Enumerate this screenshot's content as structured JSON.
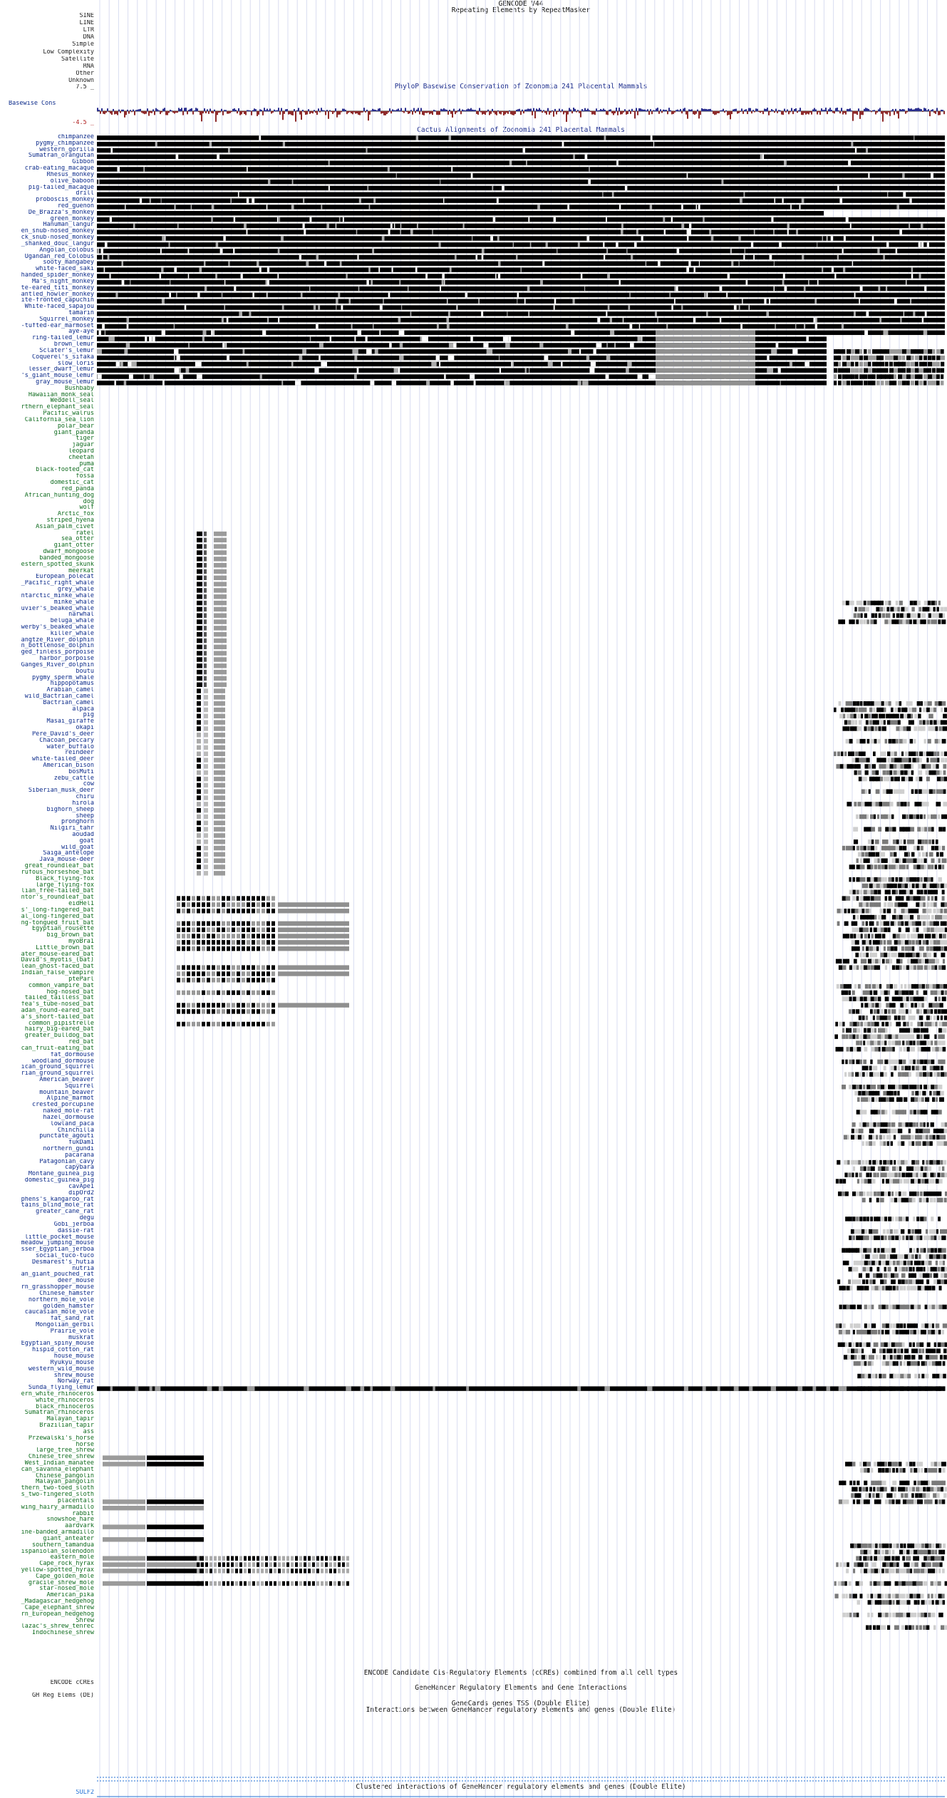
{
  "header": {
    "gencode_title": "GENCODE V44",
    "rmsk_title": "Repeating Elements by RepeatMasker",
    "phylop_title": "PhyloP Basewise Conservation of Zoonomia 241 Placental Mammals",
    "cactus_title": "Cactus Alignments of Zoonomia 241 Placental Mammals"
  },
  "repeat_classes": [
    "SINE",
    "LINE",
    "LTR",
    "DNA",
    "Simple",
    "Low Complexity",
    "Satellite",
    "RNA",
    "Other",
    "Unknown"
  ],
  "phylop": {
    "label": "Basewise Cons",
    "ymax_label": "7.5 _",
    "ymin_label": "-4.5 _"
  },
  "species": [
    {
      "n": "chimpanzee",
      "c": "b"
    },
    {
      "n": "pygmy_chimpanzee",
      "c": "b"
    },
    {
      "n": "western_gorilla",
      "c": "b"
    },
    {
      "n": "Sumatran_orangutan",
      "c": "b"
    },
    {
      "n": "Gibbon",
      "c": "b"
    },
    {
      "n": "crab-eating_macaque",
      "c": "b"
    },
    {
      "n": "Rhesus_monkey",
      "c": "b"
    },
    {
      "n": "olive_baboon",
      "c": "b"
    },
    {
      "n": "pig-tailed_macaque",
      "c": "b"
    },
    {
      "n": "drill",
      "c": "b"
    },
    {
      "n": "proboscis_monkey",
      "c": "b"
    },
    {
      "n": "red_guenon",
      "c": "b"
    },
    {
      "n": "De_Brazza's_monkey",
      "c": "b"
    },
    {
      "n": "green_monkey",
      "c": "b"
    },
    {
      "n": "Hanuman_langur",
      "c": "b"
    },
    {
      "n": "en_snub-nosed_monkey",
      "c": "b"
    },
    {
      "n": "ck_snub-nosed_monkey",
      "c": "b"
    },
    {
      "n": "_shanked_douc_langur",
      "c": "b"
    },
    {
      "n": "Angolan_colobus",
      "c": "b"
    },
    {
      "n": "Ugandan_red_Colobus",
      "c": "b"
    },
    {
      "n": "sooty_mangabey",
      "c": "b"
    },
    {
      "n": "white-faced_saki",
      "c": "b"
    },
    {
      "n": "handed_spider_monkey",
      "c": "b"
    },
    {
      "n": "Ma's_night_monkey",
      "c": "b"
    },
    {
      "n": "te-eared_titi_monkey",
      "c": "b"
    },
    {
      "n": "antled_howler_monkey",
      "c": "b"
    },
    {
      "n": "ite-fronted_capuchin",
      "c": "b"
    },
    {
      "n": "White-faced_sapajou",
      "c": "b"
    },
    {
      "n": "tamarin",
      "c": "b"
    },
    {
      "n": "Squirrel_monkey",
      "c": "b"
    },
    {
      "n": "-tufted-ear_marmoset",
      "c": "b"
    },
    {
      "n": "aye-aye",
      "c": "b"
    },
    {
      "n": "ring-tailed_lemur",
      "c": "b"
    },
    {
      "n": "brown_lemur",
      "c": "b"
    },
    {
      "n": "Sclater's_lemur",
      "c": "b"
    },
    {
      "n": "Coquerel's_sifaka",
      "c": "b"
    },
    {
      "n": "slow_loris",
      "c": "b"
    },
    {
      "n": "lesser_dwarf_lemur",
      "c": "b"
    },
    {
      "n": "'s_giant_mouse_lemur",
      "c": "b"
    },
    {
      "n": "gray_mouse_lemur",
      "c": "b"
    },
    {
      "n": "Bushbaby",
      "c": "g"
    },
    {
      "n": "Hawaiian_monk_seal",
      "c": "g"
    },
    {
      "n": "Weddell_seal",
      "c": "g"
    },
    {
      "n": "rthern_elephant_seal",
      "c": "g"
    },
    {
      "n": "Pacific_walrus",
      "c": "g"
    },
    {
      "n": "California_sea_lion",
      "c": "g"
    },
    {
      "n": "polar_bear",
      "c": "g"
    },
    {
      "n": "giant_panda",
      "c": "g"
    },
    {
      "n": "tiger",
      "c": "g"
    },
    {
      "n": "jaguar",
      "c": "g"
    },
    {
      "n": "leopard",
      "c": "g"
    },
    {
      "n": "cheetah",
      "c": "g"
    },
    {
      "n": "puma",
      "c": "g"
    },
    {
      "n": "black-footed_cat",
      "c": "g"
    },
    {
      "n": "fossa",
      "c": "g"
    },
    {
      "n": "domestic_cat",
      "c": "g"
    },
    {
      "n": "red_panda",
      "c": "g"
    },
    {
      "n": "African_hunting_dog",
      "c": "g"
    },
    {
      "n": "dog",
      "c": "g"
    },
    {
      "n": "wolf",
      "c": "g"
    },
    {
      "n": "Arctic_fox",
      "c": "g"
    },
    {
      "n": "striped_hyena",
      "c": "g"
    },
    {
      "n": "Asian_palm_civet",
      "c": "g"
    },
    {
      "n": "ratel",
      "c": "g"
    },
    {
      "n": "sea_otter",
      "c": "g"
    },
    {
      "n": "giant_otter",
      "c": "g"
    },
    {
      "n": "dwarf_mongoose",
      "c": "g"
    },
    {
      "n": "banded_mongoose",
      "c": "g"
    },
    {
      "n": "estern_spotted_skunk",
      "c": "g"
    },
    {
      "n": "meerkat",
      "c": "g"
    },
    {
      "n": "European_polecat",
      "c": "b"
    },
    {
      "n": "_Pacific_right_whale",
      "c": "b"
    },
    {
      "n": "grey_whale",
      "c": "b"
    },
    {
      "n": "ntarctic_minke_whale",
      "c": "b"
    },
    {
      "n": "minke_whale",
      "c": "b"
    },
    {
      "n": "uvier's_beaked_whale",
      "c": "b"
    },
    {
      "n": "narwhal",
      "c": "b"
    },
    {
      "n": "beluga_whale",
      "c": "b"
    },
    {
      "n": "werby's_beaked_whale",
      "c": "b"
    },
    {
      "n": "killer_whale",
      "c": "b"
    },
    {
      "n": "angtze_River_dolphin",
      "c": "b"
    },
    {
      "n": "n_bottlenose_dolphin",
      "c": "b"
    },
    {
      "n": "ged_finless_porpoise",
      "c": "b"
    },
    {
      "n": "harbor_porpoise",
      "c": "b"
    },
    {
      "n": "Ganges_River_dolphin",
      "c": "b"
    },
    {
      "n": "boutu",
      "c": "b"
    },
    {
      "n": "pygmy_sperm_whale",
      "c": "b"
    },
    {
      "n": "hippopotamus",
      "c": "b"
    },
    {
      "n": "Arabian_camel",
      "c": "b"
    },
    {
      "n": "wild_Bactrian_camel",
      "c": "b"
    },
    {
      "n": "Bactrian_camel",
      "c": "b"
    },
    {
      "n": "alpaca",
      "c": "b"
    },
    {
      "n": "pig",
      "c": "b"
    },
    {
      "n": "Masai_giraffe",
      "c": "b"
    },
    {
      "n": "okapi",
      "c": "b"
    },
    {
      "n": "Pere_David's_deer",
      "c": "b"
    },
    {
      "n": "Chacoan_peccary",
      "c": "b"
    },
    {
      "n": "water_buffalo",
      "c": "b"
    },
    {
      "n": "reindeer",
      "c": "b"
    },
    {
      "n": "white-tailed_deer",
      "c": "b"
    },
    {
      "n": "American_bison",
      "c": "b"
    },
    {
      "n": "bosMuti",
      "c": "b"
    },
    {
      "n": "zebu_cattle",
      "c": "b"
    },
    {
      "n": "cow",
      "c": "b"
    },
    {
      "n": "Siberian_musk_deer",
      "c": "b"
    },
    {
      "n": "chiru",
      "c": "b"
    },
    {
      "n": "hirola",
      "c": "b"
    },
    {
      "n": "bighorn_sheep",
      "c": "b"
    },
    {
      "n": "sheep",
      "c": "b"
    },
    {
      "n": "pronghorn",
      "c": "b"
    },
    {
      "n": "Nilgiri_tahr",
      "c": "b"
    },
    {
      "n": "aoudad",
      "c": "b"
    },
    {
      "n": "goat",
      "c": "b"
    },
    {
      "n": "wild_goat",
      "c": "b"
    },
    {
      "n": "Saiga_antelope",
      "c": "b"
    },
    {
      "n": "Java_mouse-deer",
      "c": "b"
    },
    {
      "n": "great_roundleaf_bat",
      "c": "g"
    },
    {
      "n": "rufous_horseshoe_bat",
      "c": "g"
    },
    {
      "n": "Black_flying-fox",
      "c": "g"
    },
    {
      "n": "large_flying-fox",
      "c": "g"
    },
    {
      "n": "lian_free-tailed_bat",
      "c": "g"
    },
    {
      "n": "ntor's_roundleaf_bat",
      "c": "g"
    },
    {
      "n": "eidHel1",
      "c": "g"
    },
    {
      "n": "s'_long-fingered_bat",
      "c": "g"
    },
    {
      "n": "al_long-fingered_bat",
      "c": "g"
    },
    {
      "n": "ng-tongued_fruit_bat",
      "c": "g"
    },
    {
      "n": "Egyptian_rousette",
      "c": "g"
    },
    {
      "n": "big_brown_bat",
      "c": "g"
    },
    {
      "n": "myoBra1",
      "c": "g"
    },
    {
      "n": "Little_brown_bat",
      "c": "g"
    },
    {
      "n": "ater_mouse-eared_bat",
      "c": "g"
    },
    {
      "n": "David's_myotis_(bat)",
      "c": "g"
    },
    {
      "n": "lean_ghost-faced_bat",
      "c": "g"
    },
    {
      "n": "Indian_false_vampire",
      "c": "g"
    },
    {
      "n": "pteParl",
      "c": "g"
    },
    {
      "n": "common_vampire_bat",
      "c": "g"
    },
    {
      "n": "hog-nosed_bat",
      "c": "g"
    },
    {
      "n": "tailed_tailless_bat",
      "c": "g"
    },
    {
      "n": "fea's_tube-nosed_bat",
      "c": "g"
    },
    {
      "n": "adan_round-eared_bat",
      "c": "g"
    },
    {
      "n": "a's_short-tailed_bat",
      "c": "g"
    },
    {
      "n": "common_pipistrelle",
      "c": "g"
    },
    {
      "n": "hairy_big-eared_bat",
      "c": "g"
    },
    {
      "n": "greater_bulldog_bat",
      "c": "g"
    },
    {
      "n": "red_bat",
      "c": "g"
    },
    {
      "n": "can_fruit-eating_bat",
      "c": "g"
    },
    {
      "n": "fat_dormouse",
      "c": "b"
    },
    {
      "n": "woodland_dormouse",
      "c": "b"
    },
    {
      "n": "ican_ground_squirrel",
      "c": "b"
    },
    {
      "n": "rian_ground_squirrel",
      "c": "b"
    },
    {
      "n": "American_beaver",
      "c": "b"
    },
    {
      "n": "Squirrel",
      "c": "b"
    },
    {
      "n": "mountain_beaver",
      "c": "b"
    },
    {
      "n": "Alpine_marmot",
      "c": "b"
    },
    {
      "n": "crested_porcupine",
      "c": "b"
    },
    {
      "n": "naked_mole-rat",
      "c": "b"
    },
    {
      "n": "hazel_dormouse",
      "c": "b"
    },
    {
      "n": "lowland_paca",
      "c": "b"
    },
    {
      "n": "Chinchilla",
      "c": "b"
    },
    {
      "n": "punctate_agouti",
      "c": "b"
    },
    {
      "n": "fukDam1",
      "c": "b"
    },
    {
      "n": "northern_gundi",
      "c": "b"
    },
    {
      "n": "pacarana",
      "c": "b"
    },
    {
      "n": "Patagonian_cavy",
      "c": "b"
    },
    {
      "n": "capybara",
      "c": "b"
    },
    {
      "n": "Montane_guinea_pig",
      "c": "b"
    },
    {
      "n": "domestic_guinea_pig",
      "c": "b"
    },
    {
      "n": "cavApe1",
      "c": "b"
    },
    {
      "n": "dipOrd2",
      "c": "b"
    },
    {
      "n": "phens's_kangaroo_rat",
      "c": "b"
    },
    {
      "n": "tains_blind_mole_rat",
      "c": "b"
    },
    {
      "n": "greater_cane_rat",
      "c": "b"
    },
    {
      "n": "degu",
      "c": "b"
    },
    {
      "n": "Gobi_jerboa",
      "c": "b"
    },
    {
      "n": "dassie-rat",
      "c": "b"
    },
    {
      "n": "little_pocket_mouse",
      "c": "b"
    },
    {
      "n": "meadow_jumping_mouse",
      "c": "b"
    },
    {
      "n": "sser_Egyptian_jerboa",
      "c": "b"
    },
    {
      "n": "social_tuco-tuco",
      "c": "b"
    },
    {
      "n": "Desmarest's_hutia",
      "c": "b"
    },
    {
      "n": "nutria",
      "c": "b"
    },
    {
      "n": "an_giant_pouched_rat",
      "c": "b"
    },
    {
      "n": "deer_mouse",
      "c": "b"
    },
    {
      "n": "rn_grasshopper_mouse",
      "c": "b"
    },
    {
      "n": "Chinese_hamster",
      "c": "b"
    },
    {
      "n": "northern_mole_vole",
      "c": "b"
    },
    {
      "n": "golden_hamster",
      "c": "b"
    },
    {
      "n": "caucasian_mole_vole",
      "c": "b"
    },
    {
      "n": "fat_sand_rat",
      "c": "b"
    },
    {
      "n": "Mongolian_gerbil",
      "c": "b"
    },
    {
      "n": "Prairie_vole",
      "c": "b"
    },
    {
      "n": "muskrat",
      "c": "b"
    },
    {
      "n": "Egyptian_spiny_mouse",
      "c": "b"
    },
    {
      "n": "hispid_cotton_rat",
      "c": "b"
    },
    {
      "n": "house_mouse",
      "c": "b"
    },
    {
      "n": "Ryukyu_mouse",
      "c": "b"
    },
    {
      "n": "western_wild_mouse",
      "c": "b"
    },
    {
      "n": "shrew_mouse",
      "c": "b"
    },
    {
      "n": "Norway_rat",
      "c": "b"
    },
    {
      "n": "Sunda_flying_lemur",
      "c": "b"
    },
    {
      "n": "ern_white_rhinoceros",
      "c": "g"
    },
    {
      "n": "white_rhinoceros",
      "c": "g"
    },
    {
      "n": "black_rhinoceros",
      "c": "g"
    },
    {
      "n": "Sumatran_rhinoceros",
      "c": "g"
    },
    {
      "n": "Malayan_tapir",
      "c": "g"
    },
    {
      "n": "Brazilian_tapir",
      "c": "g"
    },
    {
      "n": "ass",
      "c": "g"
    },
    {
      "n": "Przewalski's_horse",
      "c": "g"
    },
    {
      "n": "horse",
      "c": "g"
    },
    {
      "n": "large_tree_shrew",
      "c": "g"
    },
    {
      "n": "Chinese_tree_shrew",
      "c": "g"
    },
    {
      "n": "West_Indian_manatee",
      "c": "g"
    },
    {
      "n": "can_savanna_elephant",
      "c": "g"
    },
    {
      "n": "Chinese_pangolin",
      "c": "g"
    },
    {
      "n": "Malayan_pangolin",
      "c": "g"
    },
    {
      "n": "thern_two-toed_sloth",
      "c": "g"
    },
    {
      "n": "s_two-fingered_sloth",
      "c": "g"
    },
    {
      "n": "placentals",
      "c": "g"
    },
    {
      "n": "wing_hairy_armadillo",
      "c": "g"
    },
    {
      "n": "rabbit",
      "c": "g"
    },
    {
      "n": "snowshoe_hare",
      "c": "g"
    },
    {
      "n": "aardvark",
      "c": "g"
    },
    {
      "n": "ine-banded_armadillo",
      "c": "g"
    },
    {
      "n": "giant_anteater",
      "c": "g"
    },
    {
      "n": "southern_tamandua",
      "c": "g"
    },
    {
      "n": "ispaniolan_solenodon",
      "c": "g"
    },
    {
      "n": "eastern_mole",
      "c": "g"
    },
    {
      "n": "Cape_rock_hyrax",
      "c": "g"
    },
    {
      "n": "yellow-spotted_hyrax",
      "c": "g"
    },
    {
      "n": "Cape_golden_mole",
      "c": "g"
    },
    {
      "n": "gracile_shrew_mole",
      "c": "g"
    },
    {
      "n": "star-nosed_mole",
      "c": "g"
    },
    {
      "n": "American_pika",
      "c": "g"
    },
    {
      "n": "_Madagascar_hedgehog",
      "c": "g"
    },
    {
      "n": "Cape_elephant_shrew",
      "c": "g"
    },
    {
      "n": "rn_European_hedgehog",
      "c": "g"
    },
    {
      "n": "Shrew",
      "c": "g"
    },
    {
      "n": "lazac's_shrew_tenrec",
      "c": "g"
    },
    {
      "n": "Indochinese_shrew",
      "c": "g"
    }
  ],
  "bottom": {
    "encode_title": "ENCODE Candidate Cis-Regulatory Elements (cCREs) combined from all cell types",
    "encode_label": "ENCODE cCREs",
    "genehancer_title": "GeneHancer Regulatory Elements and Gene Interactions",
    "gh_label": "GH Reg Elems (DE)",
    "tss_title": "GeneCards genes TSS (Double Elite)",
    "interactions_title": "Interactions between GeneHancer regulatory elements and genes (Double Elite)",
    "clustered_title": "Clustered interactions of GeneHancer regulatory elements and genes (Double Elite)",
    "gene_label": "SULF2"
  }
}
